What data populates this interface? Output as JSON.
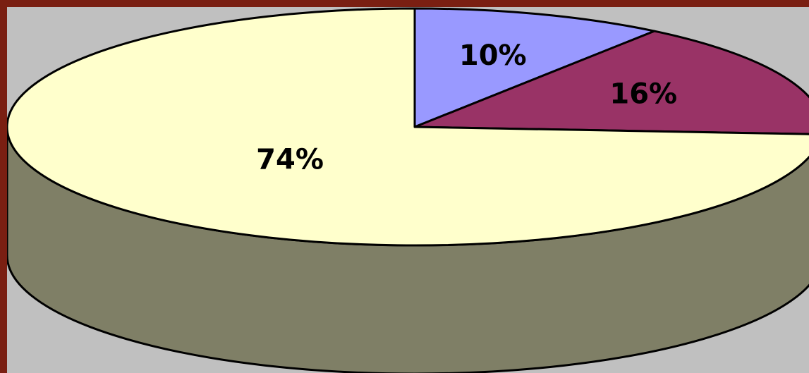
{
  "chart_data": {
    "type": "pie",
    "style": "3d",
    "title": "",
    "slices": [
      {
        "label": "10%",
        "value": 10,
        "color": "#9999ff"
      },
      {
        "label": "16%",
        "value": 16,
        "color": "#993366"
      },
      {
        "label": "74%",
        "value": 74,
        "color": "#ffffcc"
      }
    ],
    "side_color": "#7f7f66",
    "legend": "none"
  }
}
